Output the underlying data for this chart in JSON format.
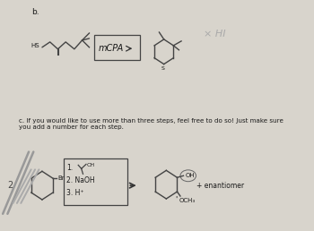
{
  "bg_color": "#d8d4cc",
  "bg_color_upper": "#e8e5de",
  "title_b": "b.",
  "title_c": "c. If you would like to use more than three steps, feel free to do so! Just make sure\nyou add a number for each step.",
  "mcpa_label": "mCPA",
  "hi_label": "× HI",
  "hs_label": "HS",
  "s_label": "S",
  "enantiomer_label": "+ enantiomer",
  "oh_label": "OH",
  "och3_label": "OCH₃",
  "br_label": "Br",
  "text_color": "#1a1a1a",
  "box_color": "#444444",
  "pencil_color": "#444444",
  "arrow_color": "#333333",
  "gray_line_color": "#888888",
  "hi_color": "#aaaaaa",
  "num2_color": "#444444"
}
